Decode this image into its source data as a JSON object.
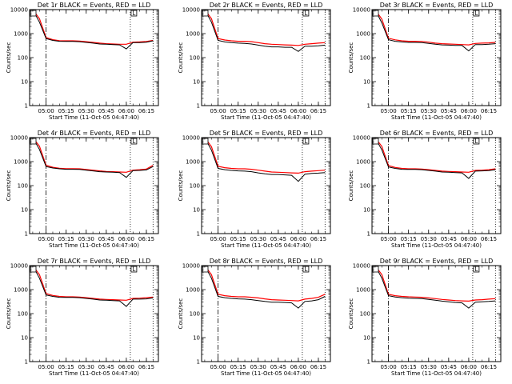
{
  "figure": {
    "common": {
      "xlabel": "Start Time (11-Oct-05 04:47:40)",
      "ylabel": "Counts/sec",
      "x_tick_labels": [
        "05:00",
        "05:15",
        "05:30",
        "05:45",
        "06:00",
        "06:15"
      ],
      "y_tick_labels": [
        "1",
        "10",
        "100",
        "1000",
        "10000"
      ],
      "marker_label": "L",
      "series_colors": {
        "events": "#000000",
        "lld": "#ff0000"
      }
    }
  },
  "chart_data": [
    {
      "type": "line",
      "title": "Det 1r BLACK = Events, RED = LLD",
      "xlabel": "Start Time (11-Oct-05 04:47:40)",
      "ylabel": "Counts/sec",
      "y_scale": "log",
      "ylim": [
        1,
        10000
      ],
      "xlim": [
        "04:47:40",
        "06:24:00"
      ],
      "x": [
        "04:50",
        "04:55",
        "05:00",
        "05:05",
        "05:10",
        "05:15",
        "05:20",
        "05:25",
        "05:30",
        "05:35",
        "05:40",
        "05:45",
        "05:50",
        "05:55",
        "06:00",
        "06:05",
        "06:10",
        "06:15",
        "06:20"
      ],
      "series": [
        {
          "values": [
            10000,
            3000,
            620,
            520,
            480,
            470,
            470,
            460,
            430,
            400,
            370,
            360,
            350,
            340,
            230,
            420,
            420,
            440,
            500
          ]
        },
        {
          "values": [
            10000,
            4200,
            680,
            560,
            510,
            500,
            500,
            490,
            460,
            430,
            400,
            380,
            370,
            360,
            360,
            440,
            450,
            470,
            520
          ]
        }
      ],
      "vlines": [
        {
          "x": "05:00",
          "style": "dash-dot"
        },
        {
          "x": "06:03",
          "style": "dotted"
        },
        {
          "x": "06:20",
          "style": "dotted"
        }
      ]
    },
    {
      "type": "line",
      "title": "Det 2r BLACK = Events, RED = LLD",
      "xlabel": "Start Time (11-Oct-05 04:47:40)",
      "ylabel": "Counts/sec",
      "y_scale": "log",
      "ylim": [
        1,
        10000
      ],
      "xlim": [
        "04:47:40",
        "06:24:00"
      ],
      "x": [
        "04:50",
        "04:55",
        "05:00",
        "05:05",
        "05:10",
        "05:15",
        "05:20",
        "05:25",
        "05:30",
        "05:35",
        "05:40",
        "05:45",
        "05:50",
        "05:55",
        "06:00",
        "06:05",
        "06:10",
        "06:15",
        "06:20"
      ],
      "series": [
        {
          "values": [
            10000,
            3000,
            520,
            450,
            420,
            400,
            390,
            370,
            330,
            300,
            280,
            280,
            270,
            270,
            180,
            300,
            300,
            310,
            330
          ]
        },
        {
          "values": [
            10000,
            4200,
            620,
            540,
            500,
            480,
            480,
            460,
            420,
            380,
            360,
            350,
            340,
            330,
            320,
            360,
            380,
            400,
            420
          ]
        }
      ],
      "vlines": [
        {
          "x": "05:00",
          "style": "dash-dot"
        },
        {
          "x": "06:03",
          "style": "dotted"
        },
        {
          "x": "06:20",
          "style": "dotted"
        }
      ]
    },
    {
      "type": "line",
      "title": "Det 3r BLACK = Events, RED = LLD",
      "xlabel": "Start Time (11-Oct-05 04:47:40)",
      "ylabel": "Counts/sec",
      "y_scale": "log",
      "ylim": [
        1,
        10000
      ],
      "xlim": [
        "04:47:40",
        "06:24:00"
      ],
      "x": [
        "04:50",
        "04:55",
        "05:00",
        "05:05",
        "05:10",
        "05:15",
        "05:20",
        "05:25",
        "05:30",
        "05:35",
        "05:40",
        "05:45",
        "05:50",
        "05:55",
        "06:00",
        "06:05",
        "06:10",
        "06:15",
        "06:20"
      ],
      "series": [
        {
          "values": [
            10000,
            2800,
            560,
            480,
            450,
            430,
            430,
            420,
            390,
            360,
            340,
            330,
            320,
            320,
            190,
            350,
            350,
            360,
            380
          ]
        },
        {
          "values": [
            10000,
            4000,
            640,
            550,
            500,
            480,
            480,
            470,
            440,
            400,
            380,
            370,
            360,
            350,
            340,
            390,
            400,
            410,
            430
          ]
        }
      ],
      "vlines": [
        {
          "x": "05:00",
          "style": "dash-dot"
        },
        {
          "x": "06:03",
          "style": "dotted"
        },
        {
          "x": "06:20",
          "style": "dotted"
        }
      ]
    },
    {
      "type": "line",
      "title": "Det 4r BLACK = Events, RED = LLD",
      "xlabel": "Start Time (11-Oct-05 04:47:40)",
      "ylabel": "Counts/sec",
      "y_scale": "log",
      "ylim": [
        1,
        10000
      ],
      "xlim": [
        "04:47:40",
        "06:24:00"
      ],
      "x": [
        "04:50",
        "04:55",
        "05:00",
        "05:05",
        "05:10",
        "05:15",
        "05:20",
        "05:25",
        "05:30",
        "05:35",
        "05:40",
        "05:45",
        "05:50",
        "05:55",
        "06:00",
        "06:05",
        "06:10",
        "06:15",
        "06:20"
      ],
      "series": [
        {
          "values": [
            10000,
            3200,
            620,
            540,
            500,
            480,
            480,
            470,
            440,
            410,
            380,
            370,
            360,
            350,
            220,
            420,
            430,
            450,
            620
          ]
        },
        {
          "values": [
            10000,
            4400,
            700,
            580,
            530,
            510,
            510,
            500,
            470,
            440,
            410,
            390,
            380,
            370,
            360,
            440,
            460,
            490,
            700
          ]
        }
      ],
      "vlines": [
        {
          "x": "05:00",
          "style": "dash-dot"
        },
        {
          "x": "06:03",
          "style": "dotted"
        },
        {
          "x": "06:20",
          "style": "dotted"
        }
      ]
    },
    {
      "type": "line",
      "title": "Det 5r BLACK = Events, RED = LLD",
      "xlabel": "Start Time (11-Oct-05 04:47:40)",
      "ylabel": "Counts/sec",
      "y_scale": "log",
      "ylim": [
        1,
        10000
      ],
      "xlim": [
        "04:47:40",
        "06:24:00"
      ],
      "x": [
        "04:50",
        "04:55",
        "05:00",
        "05:05",
        "05:10",
        "05:15",
        "05:20",
        "05:25",
        "05:30",
        "05:35",
        "05:40",
        "05:45",
        "05:50",
        "05:55",
        "06:00",
        "06:05",
        "06:10",
        "06:15",
        "06:20"
      ],
      "series": [
        {
          "values": [
            10000,
            3000,
            520,
            460,
            430,
            410,
            400,
            380,
            340,
            310,
            290,
            290,
            280,
            270,
            150,
            300,
            320,
            330,
            350
          ]
        },
        {
          "values": [
            10000,
            4200,
            640,
            560,
            520,
            500,
            500,
            480,
            440,
            400,
            370,
            360,
            350,
            340,
            330,
            380,
            400,
            420,
            440
          ]
        }
      ],
      "vlines": [
        {
          "x": "05:00",
          "style": "dash-dot"
        },
        {
          "x": "06:03",
          "style": "dotted"
        },
        {
          "x": "06:20",
          "style": "dotted"
        }
      ]
    },
    {
      "type": "line",
      "title": "Det 6r BLACK = Events, RED = LLD",
      "xlabel": "Start Time (11-Oct-05 04:47:40)",
      "ylabel": "Counts/sec",
      "y_scale": "log",
      "ylim": [
        1,
        10000
      ],
      "xlim": [
        "04:47:40",
        "06:24:00"
      ],
      "x": [
        "04:50",
        "04:55",
        "05:00",
        "05:05",
        "05:10",
        "05:15",
        "05:20",
        "05:25",
        "05:30",
        "05:35",
        "05:40",
        "05:45",
        "05:50",
        "05:55",
        "06:00",
        "06:05",
        "06:10",
        "06:15",
        "06:20"
      ],
      "series": [
        {
          "values": [
            10000,
            3100,
            600,
            520,
            480,
            470,
            470,
            460,
            430,
            400,
            370,
            360,
            350,
            340,
            200,
            400,
            410,
            420,
            460
          ]
        },
        {
          "values": [
            10000,
            4300,
            680,
            570,
            520,
            500,
            500,
            490,
            460,
            430,
            400,
            390,
            380,
            370,
            360,
            430,
            440,
            460,
            500
          ]
        }
      ],
      "vlines": [
        {
          "x": "05:00",
          "style": "dash-dot"
        },
        {
          "x": "06:03",
          "style": "dotted"
        },
        {
          "x": "06:20",
          "style": "dotted"
        }
      ]
    },
    {
      "type": "line",
      "title": "Det 7r BLACK = Events, RED = LLD",
      "xlabel": "Start Time (11-Oct-05 04:47:40)",
      "ylabel": "Counts/sec",
      "y_scale": "log",
      "ylim": [
        1,
        10000
      ],
      "xlim": [
        "04:47:40",
        "06:24:00"
      ],
      "x": [
        "04:50",
        "04:55",
        "05:00",
        "05:05",
        "05:10",
        "05:15",
        "05:20",
        "05:25",
        "05:30",
        "05:35",
        "05:40",
        "05:45",
        "05:50",
        "05:55",
        "06:00",
        "06:05",
        "06:10",
        "06:15",
        "06:20"
      ],
      "series": [
        {
          "values": [
            10000,
            3000,
            600,
            520,
            480,
            470,
            470,
            460,
            430,
            400,
            370,
            360,
            350,
            340,
            200,
            400,
            400,
            410,
            450
          ]
        },
        {
          "values": [
            10000,
            4200,
            680,
            570,
            520,
            500,
            500,
            490,
            460,
            430,
            400,
            390,
            380,
            370,
            360,
            430,
            440,
            460,
            490
          ]
        }
      ],
      "vlines": [
        {
          "x": "05:00",
          "style": "dash-dot"
        },
        {
          "x": "06:03",
          "style": "dotted"
        },
        {
          "x": "06:20",
          "style": "dotted"
        }
      ]
    },
    {
      "type": "line",
      "title": "Det 8r BLACK = Events, RED = LLD",
      "xlabel": "Start Time (11-Oct-05 04:47:40)",
      "ylabel": "Counts/sec",
      "y_scale": "log",
      "ylim": [
        1,
        10000
      ],
      "xlim": [
        "04:47:40",
        "06:24:00"
      ],
      "x": [
        "04:50",
        "04:55",
        "05:00",
        "05:05",
        "05:10",
        "05:15",
        "05:20",
        "05:25",
        "05:30",
        "05:35",
        "05:40",
        "05:45",
        "05:50",
        "05:55",
        "06:00",
        "06:05",
        "06:10",
        "06:15",
        "06:20"
      ],
      "series": [
        {
          "values": [
            10000,
            3000,
            520,
            460,
            430,
            410,
            400,
            380,
            350,
            320,
            300,
            300,
            290,
            280,
            170,
            320,
            340,
            380,
            520
          ]
        },
        {
          "values": [
            10000,
            4200,
            640,
            560,
            520,
            500,
            500,
            480,
            450,
            410,
            380,
            370,
            360,
            350,
            340,
            400,
            430,
            480,
            640
          ]
        }
      ],
      "vlines": [
        {
          "x": "05:00",
          "style": "dash-dot"
        },
        {
          "x": "06:03",
          "style": "dotted"
        },
        {
          "x": "06:20",
          "style": "dotted"
        }
      ]
    },
    {
      "type": "line",
      "title": "Det 9r BLACK = Events, RED = LLD",
      "xlabel": "Start Time (11-Oct-05 04:47:40)",
      "ylabel": "Counts/sec",
      "y_scale": "log",
      "ylim": [
        1,
        10000
      ],
      "xlim": [
        "04:47:40",
        "06:24:00"
      ],
      "x": [
        "04:50",
        "04:55",
        "05:00",
        "05:05",
        "05:10",
        "05:15",
        "05:20",
        "05:25",
        "05:30",
        "05:35",
        "05:40",
        "05:45",
        "05:50",
        "05:55",
        "06:00",
        "06:05",
        "06:10",
        "06:15",
        "06:20"
      ],
      "series": [
        {
          "values": [
            10000,
            3000,
            560,
            490,
            460,
            440,
            430,
            420,
            390,
            360,
            330,
            310,
            290,
            280,
            170,
            300,
            310,
            320,
            340
          ]
        },
        {
          "values": [
            10000,
            4200,
            640,
            560,
            520,
            500,
            490,
            480,
            450,
            420,
            390,
            370,
            350,
            340,
            330,
            370,
            380,
            400,
            420
          ]
        }
      ],
      "vlines": [
        {
          "x": "05:00",
          "style": "dash-dot"
        },
        {
          "x": "06:03",
          "style": "dotted"
        },
        {
          "x": "06:20",
          "style": "dotted"
        }
      ]
    }
  ]
}
